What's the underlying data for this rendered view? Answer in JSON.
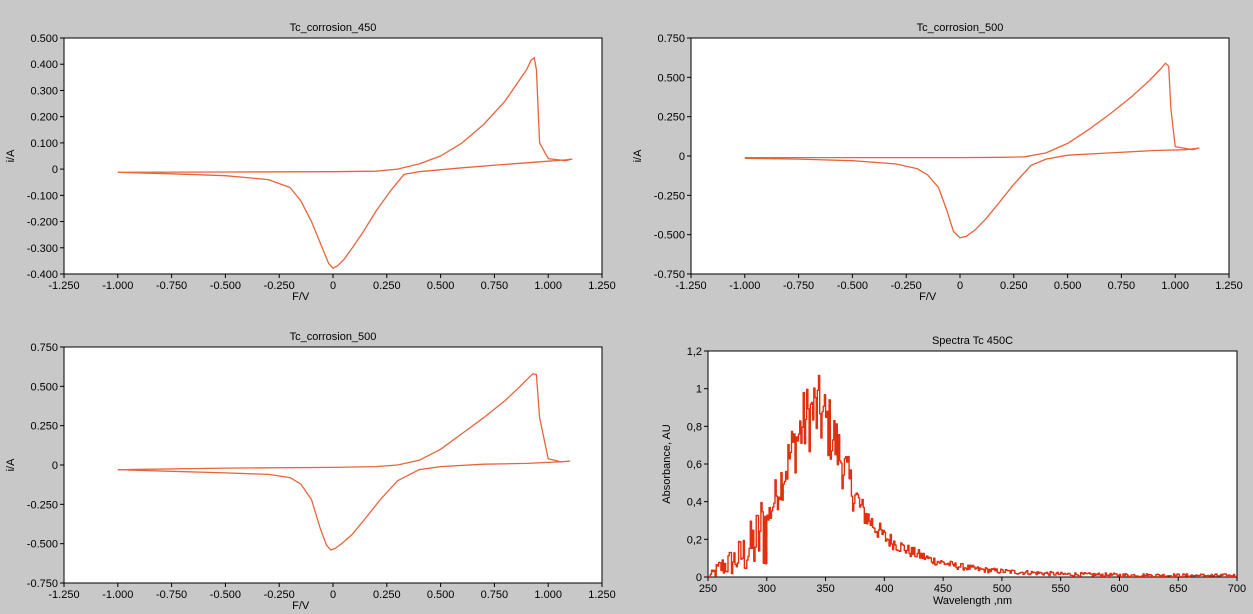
{
  "chart_data": [
    {
      "type": "line",
      "title": "Tc_corrosion_450",
      "xlabel": "F/V",
      "ylabel": "i/A",
      "xlim": [
        -1.25,
        1.25
      ],
      "ylim": [
        -0.4,
        0.5
      ],
      "xticks": [
        "-1.250",
        "-1.000",
        "-0.750",
        "-0.500",
        "-0.250",
        "0",
        "0.250",
        "0.500",
        "0.750",
        "1.000",
        "1.250"
      ],
      "yticks": [
        "0.500",
        "0.400",
        "0.300",
        "0.200",
        "0.100",
        "0",
        "-0.100",
        "-0.200",
        "-0.300",
        "-0.400"
      ],
      "xtick_values": [
        -1.25,
        -1.0,
        -0.75,
        -0.5,
        -0.25,
        0,
        0.25,
        0.5,
        0.75,
        1.0,
        1.25
      ],
      "ytick_values": [
        0.5,
        0.4,
        0.3,
        0.2,
        0.1,
        0,
        -0.1,
        -0.2,
        -0.3,
        -0.4
      ],
      "grid": false,
      "color": "#e8643c",
      "series": [
        {
          "x": [
            -1.0,
            -0.5,
            0.0,
            0.2,
            0.3,
            0.4,
            0.5,
            0.6,
            0.7,
            0.8,
            0.85,
            0.9,
            0.92,
            0.935,
            0.945,
            0.96,
            1.0,
            1.08,
            1.11,
            1.08,
            1.0,
            0.9,
            0.8,
            0.6,
            0.4,
            0.33,
            0.27,
            0.2,
            0.14,
            0.09,
            0.05,
            0.02,
            0.0,
            -0.02,
            -0.05,
            -0.1,
            -0.15,
            -0.2,
            -0.3,
            -0.5,
            -0.75,
            -1.0
          ],
          "y": [
            -0.012,
            -0.011,
            -0.01,
            -0.008,
            0.0,
            0.02,
            0.05,
            0.1,
            0.17,
            0.26,
            0.32,
            0.38,
            0.415,
            0.425,
            0.38,
            0.1,
            0.04,
            0.032,
            0.038,
            0.035,
            0.03,
            0.024,
            0.018,
            0.005,
            -0.01,
            -0.02,
            -0.08,
            -0.16,
            -0.24,
            -0.3,
            -0.345,
            -0.37,
            -0.378,
            -0.36,
            -0.3,
            -0.2,
            -0.12,
            -0.07,
            -0.04,
            -0.025,
            -0.018,
            -0.012
          ]
        }
      ]
    },
    {
      "type": "line",
      "title": "Tc_corrosion_500",
      "xlabel": "F/V",
      "ylabel": "i/A",
      "xlim": [
        -1.25,
        1.25
      ],
      "ylim": [
        -0.75,
        0.75
      ],
      "xticks": [
        "-1.250",
        "-1.000",
        "-0.750",
        "-0.500",
        "-0.250",
        "0",
        "0.250",
        "0.500",
        "0.750",
        "1.000",
        "1.250"
      ],
      "yticks": [
        "0.750",
        "0.500",
        "0.250",
        "0",
        "-0.250",
        "-0.500",
        "-0.750"
      ],
      "xtick_values": [
        -1.25,
        -1.0,
        -0.75,
        -0.5,
        -0.25,
        0,
        0.25,
        0.5,
        0.75,
        1.0,
        1.25
      ],
      "ytick_values": [
        0.75,
        0.5,
        0.25,
        0,
        -0.25,
        -0.5,
        -0.75
      ],
      "grid": false,
      "color": "#e8643c",
      "series": [
        {
          "x": [
            -1.0,
            -0.5,
            0.0,
            0.2,
            0.3,
            0.4,
            0.5,
            0.6,
            0.7,
            0.8,
            0.88,
            0.93,
            0.955,
            0.97,
            0.98,
            1.0,
            1.08,
            1.11,
            1.05,
            0.9,
            0.7,
            0.5,
            0.4,
            0.33,
            0.25,
            0.18,
            0.12,
            0.07,
            0.03,
            0.0,
            -0.03,
            -0.06,
            -0.1,
            -0.15,
            -0.2,
            -0.3,
            -0.5,
            -0.75,
            -1.0
          ],
          "y": [
            -0.01,
            -0.01,
            -0.01,
            -0.008,
            -0.005,
            0.02,
            0.08,
            0.17,
            0.27,
            0.38,
            0.48,
            0.55,
            0.59,
            0.57,
            0.3,
            0.06,
            0.04,
            0.05,
            0.04,
            0.035,
            0.02,
            0.005,
            -0.02,
            -0.06,
            -0.18,
            -0.3,
            -0.4,
            -0.47,
            -0.51,
            -0.52,
            -0.48,
            -0.35,
            -0.2,
            -0.12,
            -0.08,
            -0.05,
            -0.03,
            -0.02,
            -0.015
          ]
        }
      ]
    },
    {
      "type": "line",
      "title": "Tc_corrosion_500",
      "xlabel": "F/V",
      "ylabel": "i/A",
      "xlim": [
        -1.25,
        1.25
      ],
      "ylim": [
        -0.75,
        0.75
      ],
      "xticks": [
        "-1.250",
        "-1.000",
        "-0.750",
        "-0.500",
        "-0.250",
        "0",
        "0.250",
        "0.500",
        "0.750",
        "1.000",
        "1.250"
      ],
      "yticks": [
        "0.750",
        "0.500",
        "0.250",
        "0",
        "-0.250",
        "-0.500",
        "-0.750"
      ],
      "xtick_values": [
        -1.25,
        -1.0,
        -0.75,
        -0.5,
        -0.25,
        0,
        0.25,
        0.5,
        0.75,
        1.0,
        1.25
      ],
      "ytick_values": [
        0.75,
        0.5,
        0.25,
        0,
        -0.25,
        -0.5,
        -0.75
      ],
      "grid": false,
      "color": "#e8643c",
      "series": [
        {
          "x": [
            -1.0,
            -0.5,
            0.0,
            0.2,
            0.3,
            0.4,
            0.5,
            0.6,
            0.7,
            0.8,
            0.87,
            0.91,
            0.93,
            0.945,
            0.96,
            1.0,
            1.06,
            1.1,
            1.05,
            0.9,
            0.7,
            0.5,
            0.4,
            0.3,
            0.22,
            0.15,
            0.09,
            0.04,
            0.01,
            -0.01,
            -0.03,
            -0.06,
            -0.1,
            -0.15,
            -0.2,
            -0.3,
            -0.5,
            -0.75,
            -1.0
          ],
          "y": [
            -0.03,
            -0.02,
            -0.015,
            -0.01,
            0.0,
            0.03,
            0.1,
            0.2,
            0.3,
            0.41,
            0.5,
            0.555,
            0.58,
            0.575,
            0.3,
            0.04,
            0.02,
            0.025,
            0.02,
            0.01,
            0.005,
            -0.01,
            -0.03,
            -0.1,
            -0.22,
            -0.34,
            -0.44,
            -0.5,
            -0.53,
            -0.54,
            -0.51,
            -0.4,
            -0.22,
            -0.12,
            -0.08,
            -0.06,
            -0.05,
            -0.04,
            -0.03
          ]
        }
      ]
    },
    {
      "type": "line",
      "title": "Spectra Tc 450C",
      "xlabel": "Wavelength ,nm",
      "ylabel": "Absorbance, AU",
      "xlim": [
        250,
        700
      ],
      "ylim": [
        0,
        1.2
      ],
      "xticks": [
        "250",
        "300",
        "350",
        "400",
        "450",
        "500",
        "550",
        "600",
        "650",
        "700"
      ],
      "yticks": [
        "1,2",
        "1",
        "0,8",
        "0,6",
        "0,4",
        "0,2",
        "0"
      ],
      "xtick_values": [
        250,
        300,
        350,
        400,
        450,
        500,
        550,
        600,
        650,
        700
      ],
      "ytick_values": [
        1.2,
        1.0,
        0.8,
        0.6,
        0.4,
        0.2,
        0
      ],
      "grid": false,
      "color": "#e03010",
      "noisy": true,
      "series": [
        {
          "x": [
            250,
            260,
            270,
            280,
            290,
            300,
            310,
            320,
            330,
            335,
            340,
            345,
            350,
            355,
            360,
            370,
            380,
            390,
            400,
            420,
            440,
            460,
            480,
            500,
            550,
            600,
            650,
            700
          ],
          "y": [
            0.0,
            0.05,
            0.08,
            0.12,
            0.18,
            0.3,
            0.48,
            0.65,
            0.8,
            0.85,
            0.88,
            0.87,
            0.82,
            0.76,
            0.68,
            0.5,
            0.36,
            0.28,
            0.21,
            0.14,
            0.09,
            0.06,
            0.04,
            0.03,
            0.015,
            0.01,
            0.008,
            0.007
          ]
        }
      ]
    }
  ]
}
